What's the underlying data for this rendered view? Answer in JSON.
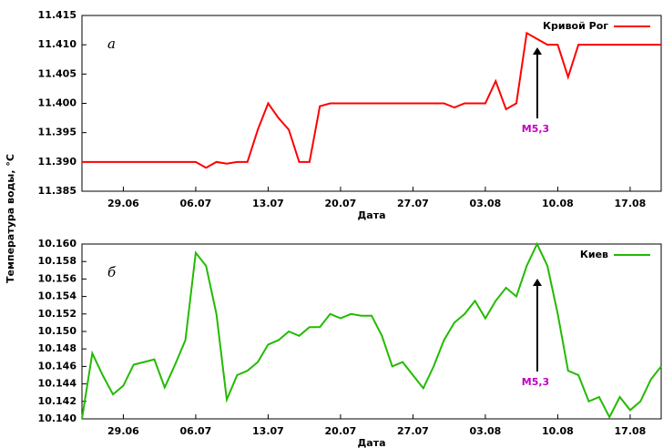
{
  "chart_data": [
    {
      "type": "line",
      "label": "а",
      "xlabel": "Дата",
      "ylabel": "Температура воды, °С",
      "annotation": "M5,3",
      "xlim": [
        "25.06",
        "20.08"
      ],
      "xticks": [
        "29.06",
        "06.07",
        "13.07",
        "20.07",
        "27.07",
        "03.08",
        "10.08",
        "17.08"
      ],
      "ylim": [
        11.385,
        11.415
      ],
      "yticks": [
        {
          "value": 11.385,
          "label": "11.385"
        },
        {
          "value": 11.39,
          "label": "11.390"
        },
        {
          "value": 11.395,
          "label": "11.395"
        },
        {
          "value": 11.4,
          "label": "11.400"
        },
        {
          "value": 11.405,
          "label": "11.405"
        },
        {
          "value": 11.41,
          "label": "11.410"
        },
        {
          "value": 11.415,
          "label": "11.415"
        }
      ],
      "x": [
        "25.06",
        "26.06",
        "27.06",
        "28.06",
        "29.06",
        "30.06",
        "01.07",
        "02.07",
        "03.07",
        "04.07",
        "05.07",
        "06.07",
        "07.07",
        "08.07",
        "09.07",
        "10.07",
        "11.07",
        "12.07",
        "13.07",
        "14.07",
        "15.07",
        "16.07",
        "17.07",
        "18.07",
        "19.07",
        "20.07",
        "21.07",
        "22.07",
        "23.07",
        "24.07",
        "25.07",
        "26.07",
        "27.07",
        "28.07",
        "29.07",
        "30.07",
        "31.07",
        "01.08",
        "02.08",
        "03.08",
        "04.08",
        "05.08",
        "06.08",
        "07.08",
        "08.08",
        "09.08",
        "10.08",
        "11.08",
        "12.08",
        "13.08",
        "14.08",
        "15.08",
        "16.08",
        "17.08",
        "18.08",
        "19.08",
        "20.08"
      ],
      "series": [
        {
          "name": "Кривой Рог",
          "color": "#ff0000",
          "values": [
            11.39,
            11.39,
            11.39,
            11.39,
            11.39,
            11.39,
            11.39,
            11.39,
            11.39,
            11.39,
            11.39,
            11.39,
            11.389,
            11.39,
            11.3897,
            11.39,
            11.39,
            11.3955,
            11.4,
            11.3975,
            11.3955,
            11.39,
            11.39,
            11.3995,
            11.4,
            11.4,
            11.4,
            11.4,
            11.4,
            11.4,
            11.4,
            11.4,
            11.4,
            11.4,
            11.4,
            11.4,
            11.3993,
            11.4,
            11.4,
            11.4,
            11.4038,
            11.399,
            11.4,
            11.412,
            11.411,
            11.41,
            11.41,
            11.4045,
            11.41,
            11.41,
            11.41,
            11.41,
            11.41,
            11.41,
            11.41,
            11.41,
            11.41
          ]
        }
      ],
      "legend": "upper right"
    },
    {
      "type": "line",
      "label": "б",
      "xlabel": "Дата",
      "annotation": "M5,3",
      "xlim": [
        "25.06",
        "20.08"
      ],
      "xticks": [
        "29.06",
        "06.07",
        "13.07",
        "20.07",
        "27.07",
        "03.08",
        "10.08",
        "17.08"
      ],
      "ylim": [
        10.14,
        10.16
      ],
      "yticks": [
        {
          "value": 10.14,
          "label": "10.140"
        },
        {
          "value": 10.142,
          "label": "10.142"
        },
        {
          "value": 10.144,
          "label": "10.144"
        },
        {
          "value": 10.146,
          "label": "10.146"
        },
        {
          "value": 10.148,
          "label": "10.148"
        },
        {
          "value": 10.15,
          "label": "10.150"
        },
        {
          "value": 10.152,
          "label": "10.152"
        },
        {
          "value": 10.154,
          "label": "10.154"
        },
        {
          "value": 10.156,
          "label": "10.156"
        },
        {
          "value": 10.158,
          "label": "10.158"
        },
        {
          "value": 10.16,
          "label": "10.160"
        }
      ],
      "x": [
        "25.06",
        "26.06",
        "27.06",
        "28.06",
        "29.06",
        "30.06",
        "01.07",
        "02.07",
        "03.07",
        "04.07",
        "05.07",
        "06.07",
        "07.07",
        "08.07",
        "09.07",
        "10.07",
        "11.07",
        "12.07",
        "13.07",
        "14.07",
        "15.07",
        "16.07",
        "17.07",
        "18.07",
        "19.07",
        "20.07",
        "21.07",
        "22.07",
        "23.07",
        "24.07",
        "25.07",
        "26.07",
        "27.07",
        "28.07",
        "29.07",
        "30.07",
        "31.07",
        "01.08",
        "02.08",
        "03.08",
        "04.08",
        "05.08",
        "06.08",
        "07.08",
        "08.08",
        "09.08",
        "10.08",
        "11.08",
        "12.08",
        "13.08",
        "14.08",
        "15.08",
        "16.08",
        "17.08",
        "18.08",
        "19.08",
        "20.08"
      ],
      "series": [
        {
          "name": "Киев",
          "color": "#22bb00",
          "values": [
            10.14,
            10.1475,
            10.145,
            10.1428,
            10.1438,
            10.1462,
            10.1465,
            10.1468,
            10.1436,
            10.1462,
            10.149,
            10.159,
            10.1575,
            10.152,
            10.1422,
            10.145,
            10.1455,
            10.1465,
            10.1485,
            10.149,
            10.15,
            10.1495,
            10.1505,
            10.1505,
            10.152,
            10.1515,
            10.152,
            10.1518,
            10.1518,
            10.1495,
            10.146,
            10.1465,
            10.145,
            10.1435,
            10.146,
            10.149,
            10.151,
            10.152,
            10.1535,
            10.1515,
            10.1535,
            10.155,
            10.154,
            10.1575,
            10.16,
            10.1575,
            10.152,
            10.1455,
            10.145,
            10.142,
            10.1425,
            10.1402,
            10.1425,
            10.141,
            10.142,
            10.1445,
            10.146
          ]
        }
      ],
      "legend": "upper right"
    }
  ]
}
